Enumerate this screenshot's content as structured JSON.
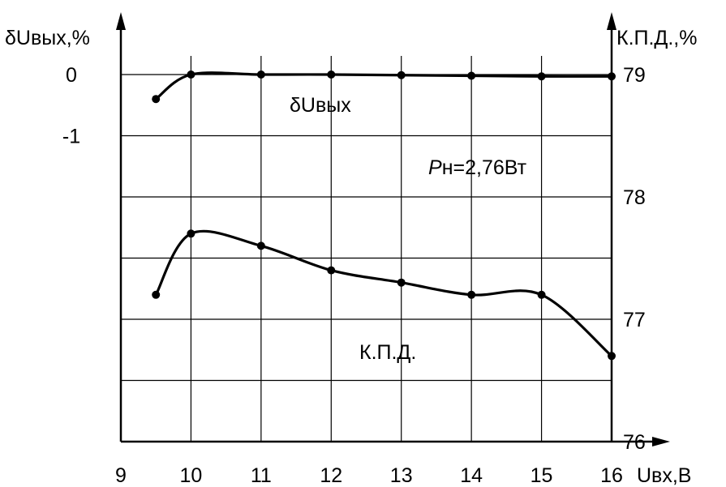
{
  "chart_data": {
    "type": "line",
    "x_axis": {
      "label": "Uвх,В",
      "ticks": [
        9,
        10,
        11,
        12,
        13,
        14,
        15,
        16
      ],
      "range": [
        9,
        16
      ]
    },
    "left_axis": {
      "label": "δUвых,%",
      "ticks": [
        0,
        -1
      ],
      "range": [
        -6,
        0
      ]
    },
    "right_axis": {
      "label": "К.П.Д.,%",
      "ticks": [
        76,
        77,
        78,
        79
      ],
      "range": [
        76,
        79
      ]
    },
    "grid": true,
    "series": [
      {
        "name": "δUвых",
        "axis": "left",
        "x": [
          9.5,
          10,
          11,
          12,
          13,
          14,
          15,
          16
        ],
        "y": [
          -0.4,
          0,
          0,
          0,
          -0.01,
          -0.02,
          -0.03,
          -0.03
        ]
      },
      {
        "name": "К.П.Д.",
        "axis": "right",
        "x": [
          9.5,
          10,
          11,
          12,
          13,
          14,
          15,
          16
        ],
        "y": [
          77.2,
          77.7,
          77.6,
          77.4,
          77.3,
          77.2,
          77.2,
          76.7
        ]
      }
    ],
    "annotations": [
      {
        "text_prefix": "P",
        "text_rest": "н=2,76Вт"
      }
    ]
  }
}
